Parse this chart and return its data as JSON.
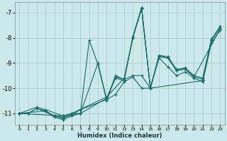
{
  "xlabel": "Humidex (Indice chaleur)",
  "bg_color": "#cce8e8",
  "grid_color": "#aad0d0",
  "line_color": "#1a6b6b",
  "xlim": [
    -0.5,
    23.5
  ],
  "ylim": [
    -11.45,
    -6.6
  ],
  "xticks": [
    0,
    1,
    2,
    3,
    4,
    5,
    6,
    7,
    8,
    9,
    10,
    11,
    12,
    13,
    14,
    15,
    16,
    17,
    18,
    19,
    20,
    21,
    22,
    23
  ],
  "yticks": [
    -11,
    -10,
    -9,
    -8,
    -7
  ],
  "series": [
    [
      [
        0,
        -11.0
      ],
      [
        1,
        -11.0
      ],
      [
        2,
        -10.8
      ],
      [
        4,
        -11.1
      ],
      [
        5,
        -11.2
      ],
      [
        6,
        -11.05
      ],
      [
        7,
        -10.85
      ],
      [
        10,
        -10.45
      ],
      [
        11,
        -10.25
      ],
      [
        12,
        -9.75
      ],
      [
        13,
        -9.55
      ],
      [
        14,
        -10.0
      ],
      [
        15,
        -10.0
      ],
      [
        16,
        -8.75
      ],
      [
        17,
        -8.8
      ],
      [
        18,
        -9.3
      ],
      [
        19,
        -9.25
      ],
      [
        20,
        -9.55
      ],
      [
        23,
        -7.65
      ]
    ],
    [
      [
        0,
        -11.0
      ],
      [
        3,
        -10.9
      ],
      [
        4,
        -11.15
      ],
      [
        5,
        -11.25
      ],
      [
        6,
        -11.1
      ],
      [
        7,
        -11.0
      ],
      [
        8,
        -8.1
      ],
      [
        9,
        -9.05
      ],
      [
        10,
        -10.5
      ],
      [
        11,
        -9.5
      ],
      [
        12,
        -9.65
      ],
      [
        13,
        -7.95
      ],
      [
        14,
        -6.8
      ],
      [
        15,
        -10.0
      ],
      [
        21,
        -9.7
      ],
      [
        22,
        -8.1
      ]
    ],
    [
      [
        0,
        -11.0
      ],
      [
        2,
        -10.75
      ],
      [
        3,
        -10.85
      ],
      [
        5,
        -11.1
      ],
      [
        6,
        -11.0
      ],
      [
        10,
        -10.35
      ],
      [
        12,
        -9.6
      ],
      [
        13,
        -8.0
      ],
      [
        14,
        -6.8
      ],
      [
        15,
        -10.0
      ],
      [
        16,
        -8.7
      ],
      [
        17,
        -8.75
      ],
      [
        18,
        -9.25
      ],
      [
        19,
        -9.2
      ],
      [
        20,
        -9.5
      ],
      [
        21,
        -9.6
      ],
      [
        22,
        -8.05
      ],
      [
        23,
        -7.55
      ]
    ],
    [
      [
        0,
        -11.0
      ],
      [
        1,
        -11.0
      ],
      [
        2,
        -10.8
      ],
      [
        3,
        -10.9
      ],
      [
        4,
        -11.1
      ],
      [
        5,
        -11.15
      ],
      [
        6,
        -11.05
      ],
      [
        7,
        -11.0
      ],
      [
        10,
        -10.4
      ],
      [
        11,
        -9.55
      ],
      [
        12,
        -9.65
      ],
      [
        13,
        -9.5
      ],
      [
        14,
        -9.5
      ],
      [
        15,
        -10.0
      ],
      [
        16,
        -8.8
      ],
      [
        17,
        -9.15
      ],
      [
        18,
        -9.5
      ],
      [
        19,
        -9.35
      ],
      [
        20,
        -9.6
      ],
      [
        21,
        -9.75
      ],
      [
        22,
        -8.2
      ],
      [
        23,
        -7.7
      ]
    ],
    [
      [
        0,
        -11.0
      ],
      [
        5,
        -11.1
      ],
      [
        6,
        -11.0
      ],
      [
        7,
        -11.0
      ],
      [
        9,
        -9.0
      ],
      [
        10,
        -10.45
      ],
      [
        11,
        -9.6
      ],
      [
        12,
        -9.7
      ],
      [
        13,
        -8.0
      ],
      [
        14,
        -6.85
      ],
      [
        15,
        -10.0
      ],
      [
        16,
        -8.7
      ],
      [
        17,
        -8.8
      ],
      [
        18,
        -9.3
      ],
      [
        19,
        -9.2
      ],
      [
        20,
        -9.55
      ],
      [
        21,
        -9.65
      ],
      [
        22,
        -8.1
      ],
      [
        23,
        -7.6
      ]
    ]
  ]
}
